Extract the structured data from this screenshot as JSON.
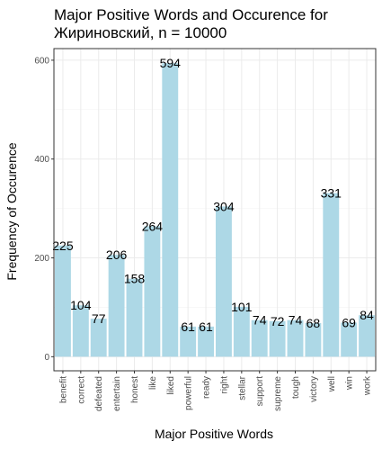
{
  "chart_data": {
    "type": "bar",
    "title_line1": "Major Positive Words and Occurence for",
    "title_line2": "Жириновский, n = 10000",
    "xlabel": "Major Positive Words",
    "ylabel": "Frequency of Occurence",
    "categories": [
      "benefit",
      "correct",
      "defeated",
      "entertain",
      "honest",
      "like",
      "liked",
      "powerful",
      "ready",
      "right",
      "stellar",
      "support",
      "supreme",
      "tough",
      "victory",
      "well",
      "win",
      "work"
    ],
    "values": [
      225,
      104,
      77,
      206,
      158,
      264,
      594,
      61,
      61,
      304,
      101,
      74,
      72,
      74,
      68,
      331,
      69,
      84
    ],
    "yticks": [
      0,
      200,
      400,
      600
    ],
    "ylim": [
      -28.5,
      623.5
    ],
    "grid": true,
    "bar_color": "#add8e6"
  }
}
